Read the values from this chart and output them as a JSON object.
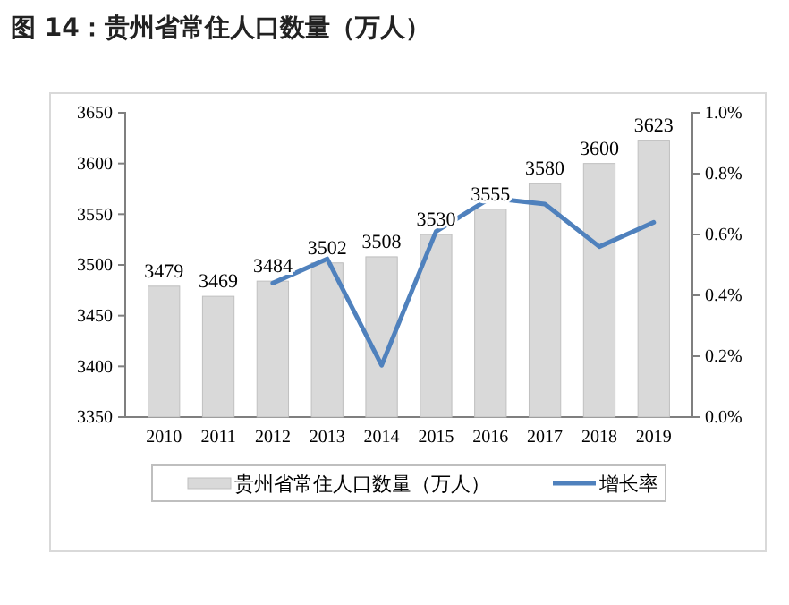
{
  "chart_data": {
    "type": "bar",
    "title": "图 14：贵州省常住人口数量（万人）",
    "categories": [
      "2010",
      "2011",
      "2012",
      "2013",
      "2014",
      "2015",
      "2016",
      "2017",
      "2018",
      "2019"
    ],
    "series": [
      {
        "name": "贵州省常住人口数量（万人）",
        "color": "#d9d9d9",
        "values": [
          3479,
          3469,
          3484,
          3502,
          3508,
          3530,
          3555,
          3580,
          3600,
          3623
        ],
        "value_labels": [
          "3479",
          "3469",
          "3484",
          "3502",
          "3508",
          "3530",
          "3555",
          "3580",
          "3600",
          "3623"
        ]
      },
      {
        "name": "增长率",
        "type": "line",
        "axis": "y2",
        "color": "#4f81bd",
        "values": [
          null,
          null,
          0.44,
          0.52,
          0.17,
          0.61,
          0.72,
          0.7,
          0.56,
          0.64
        ]
      }
    ],
    "ylim": [
      3350,
      3650
    ],
    "yticks": [
      3350,
      3400,
      3450,
      3500,
      3550,
      3600,
      3650
    ],
    "y2lim": [
      0,
      1
    ],
    "y2ticks": [
      {
        "value": 0,
        "label": "0.0%"
      },
      {
        "value": 0.2,
        "label": "0.2%"
      },
      {
        "value": 0.4,
        "label": "0.4%"
      },
      {
        "value": 0.6,
        "label": "0.6%"
      },
      {
        "value": 0.8,
        "label": "0.8%"
      },
      {
        "value": 1,
        "label": "1.0%"
      }
    ],
    "legend": "bottom",
    "marker": "none",
    "line_style": "solid"
  }
}
